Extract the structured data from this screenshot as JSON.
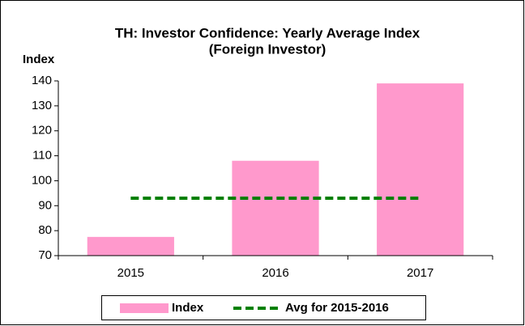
{
  "chart_data": {
    "type": "bar",
    "title": [
      "TH: Investor Confidence: Yearly Average Index",
      "(Foreign Investor)"
    ],
    "y_axis_label": "Index",
    "categories": [
      "2015",
      "2016",
      "2017"
    ],
    "series": [
      {
        "name": "Index",
        "type": "bar",
        "color": "#ff99cc",
        "values": [
          77.5,
          108,
          139
        ]
      },
      {
        "name": "Avg for 2015-2016",
        "type": "line",
        "color": "#008000",
        "dashed": true,
        "values": [
          93,
          93,
          93
        ]
      }
    ],
    "ylim": [
      70,
      140
    ],
    "yticks": [
      70,
      80,
      90,
      100,
      110,
      120,
      130,
      140
    ],
    "grid": false,
    "legend": "bottom"
  }
}
